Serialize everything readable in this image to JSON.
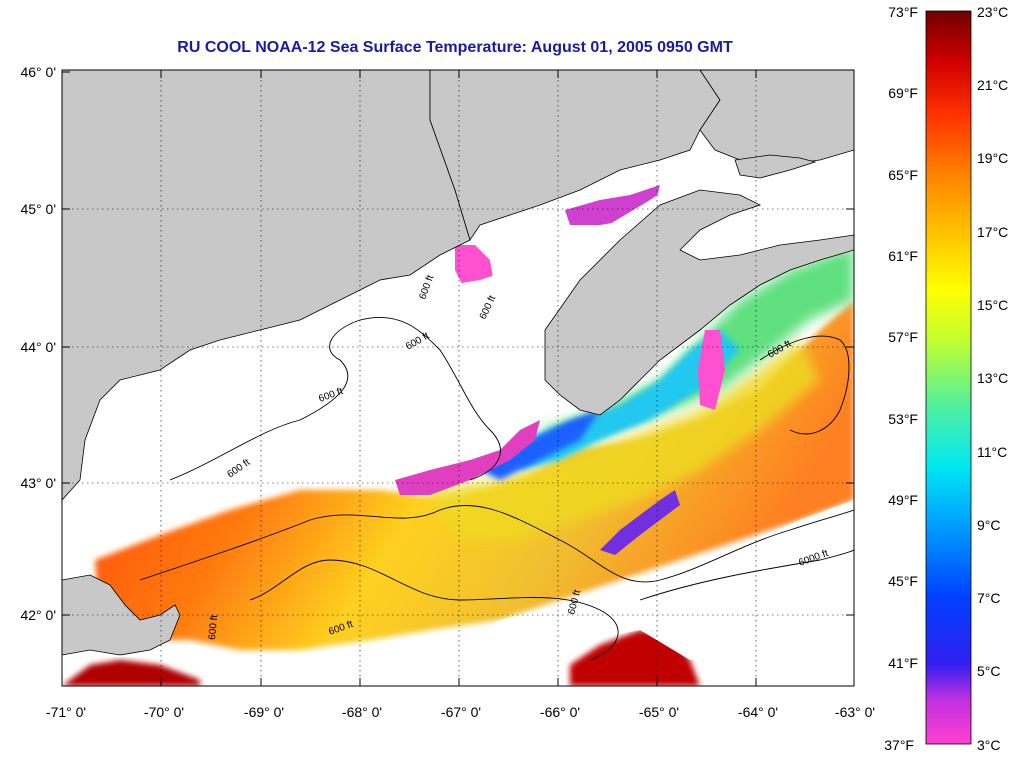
{
  "title": "RU COOL  NOAA-12  Sea Surface Temperature:  August 01, 2005 0950 GMT",
  "map": {
    "lat_ticks": [
      "46° 0'",
      "45° 0'",
      "44° 0'",
      "43° 0'",
      "42° 0'"
    ],
    "lon_ticks": [
      "-71° 0'",
      "-70° 0'",
      "-69° 0'",
      "-68° 0'",
      "-67° 0'",
      "-66° 0'",
      "-65° 0'",
      "-64° 0'",
      "-63° 0'"
    ],
    "contour_labels": [
      "600 ft",
      "600 ft",
      "600 ft",
      "600 ft",
      "600 ft",
      "600 ft",
      "600 ft",
      "6000 ft",
      "600 ft",
      "600 ft"
    ],
    "grid": "dotted",
    "colors": {
      "land": "#c8c8c8",
      "cloud": "#ffffff",
      "coast": "#000000"
    }
  },
  "colorbar": {
    "fahrenheit_labels": [
      "73°F",
      "69°F",
      "65°F",
      "61°F",
      "57°F",
      "53°F",
      "49°F",
      "45°F",
      "41°F",
      "37°F"
    ],
    "celsius_labels": [
      "23°C",
      "21°C",
      "19°C",
      "17°C",
      "15°C",
      "13°C",
      "11°C",
      "9°C",
      "7°C",
      "5°C",
      "3°C"
    ],
    "range_c": [
      3,
      23
    ],
    "range_f": [
      37,
      73
    ],
    "colors": [
      "#ff40d0",
      "#8a20e0",
      "#0010ff",
      "#00a0ff",
      "#00f0f0",
      "#60f090",
      "#d0ff20",
      "#ffe000",
      "#ffa000",
      "#ff5000",
      "#ff0000",
      "#a00000",
      "#600000"
    ]
  }
}
